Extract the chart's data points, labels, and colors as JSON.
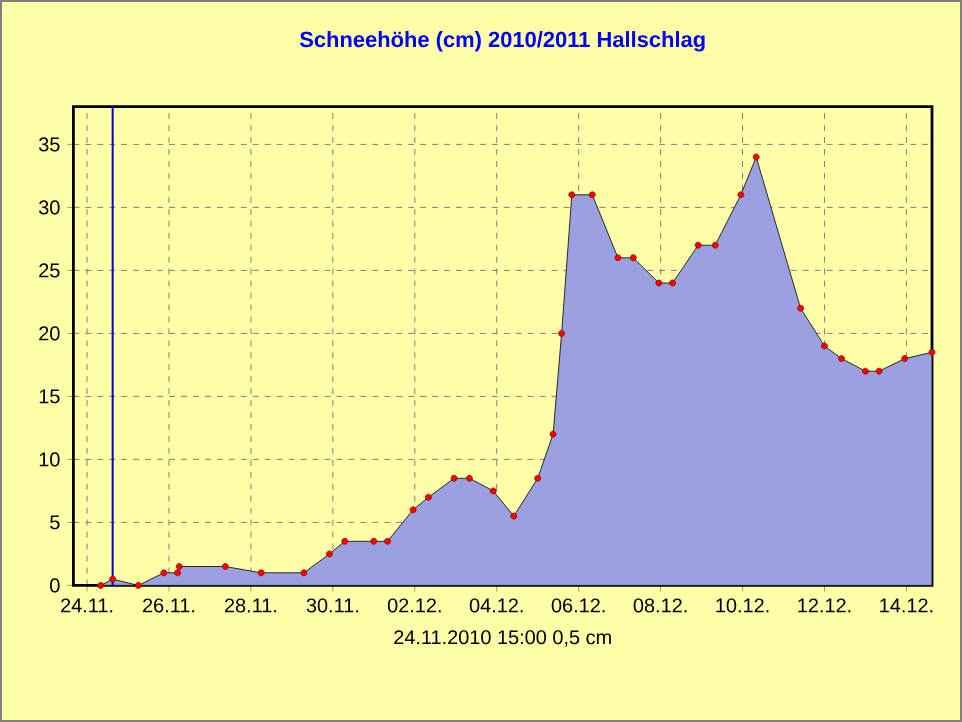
{
  "chart_data": {
    "type": "area",
    "title": "Schneehöhe (cm)  2010/2011      Hallschlag",
    "xlabel": "24.11.2010  15:00   0,5 cm",
    "x": [
      "2010-11-24T08:00",
      "2010-11-24T15:00",
      "2010-11-25T06:00",
      "2010-11-25T21:00",
      "2010-11-26T05:00",
      "2010-11-26T06:00",
      "2010-11-27T09:00",
      "2010-11-28T06:00",
      "2010-11-29T07:00",
      "2010-11-29T22:00",
      "2010-11-30T07:00",
      "2010-12-01T00:00",
      "2010-12-01T08:00",
      "2010-12-01T23:00",
      "2010-12-02T08:00",
      "2010-12-02T23:00",
      "2010-12-03T08:00",
      "2010-12-03T22:00",
      "2010-12-04T10:00",
      "2010-12-05T00:00",
      "2010-12-05T09:00",
      "2010-12-05T14:00",
      "2010-12-05T20:00",
      "2010-12-06T08:00",
      "2010-12-06T23:00",
      "2010-12-07T08:00",
      "2010-12-07T23:00",
      "2010-12-08T07:00",
      "2010-12-08T22:00",
      "2010-12-09T08:00",
      "2010-12-09T23:00",
      "2010-12-10T08:00",
      "2010-12-11T10:00",
      "2010-12-12T00:00",
      "2010-12-12T10:00",
      "2010-12-13T00:00",
      "2010-12-13T08:00",
      "2010-12-13T23:00",
      "2010-12-14T15:00"
    ],
    "series": [
      {
        "color": "#9aa0e0",
        "values": [
          0,
          0.5,
          0,
          1,
          1,
          1.5,
          1.5,
          1,
          1,
          2.5,
          3.5,
          3.5,
          3.5,
          6,
          7,
          8.5,
          8.5,
          7.5,
          5.5,
          8.5,
          12,
          20,
          31,
          31,
          26,
          26,
          24,
          24,
          27,
          27,
          31,
          34,
          22,
          19,
          18,
          17,
          17,
          18,
          18.5
        ]
      }
    ],
    "xlim": [
      "2010-11-23T16:00",
      "2010-12-14T15:00"
    ],
    "xticks": [
      {
        "value": "2010-11-24",
        "label": "24.11."
      },
      {
        "value": "2010-11-26",
        "label": "26.11."
      },
      {
        "value": "2010-11-28",
        "label": "28.11."
      },
      {
        "value": "2010-11-30",
        "label": "30.11."
      },
      {
        "value": "2010-12-02",
        "label": "02.12."
      },
      {
        "value": "2010-12-04",
        "label": "04.12."
      },
      {
        "value": "2010-12-06",
        "label": "06.12."
      },
      {
        "value": "2010-12-08",
        "label": "08.12."
      },
      {
        "value": "2010-12-10",
        "label": "10.12."
      },
      {
        "value": "2010-12-12",
        "label": "12.12."
      },
      {
        "value": "2010-12-14",
        "label": "14.12."
      }
    ],
    "ylim": [
      0,
      38
    ],
    "yticks": [
      0,
      5,
      10,
      15,
      20,
      25,
      30,
      35
    ],
    "ref_lines": [
      {
        "axis": "x",
        "value": "2010-11-24T15:00",
        "color": "#0000cc"
      }
    ],
    "grid": true,
    "marker": "circle",
    "line_style": "solid"
  }
}
